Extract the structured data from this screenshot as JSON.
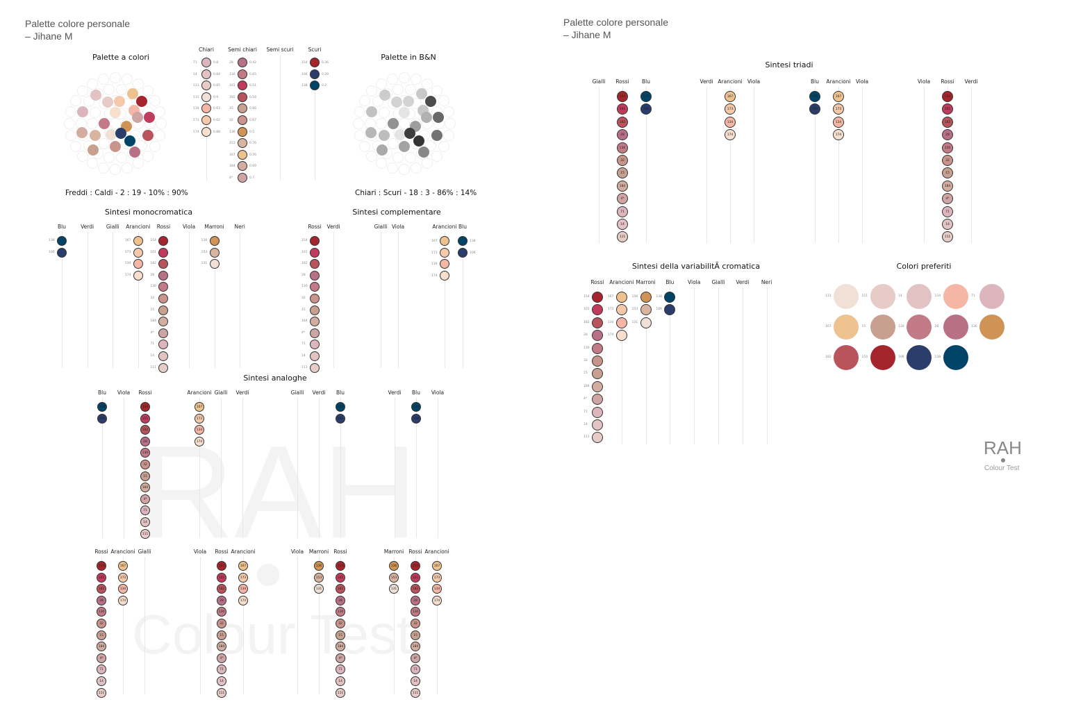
{
  "header_left": {
    "title": "Palette colore personale",
    "name": "– Jihane M"
  },
  "header_right": {
    "title": "Palette colore personale",
    "name": "– Jihane M"
  },
  "sections": {
    "palette_colori": "Palette a colori",
    "palette_bn": "Palette in B&N",
    "mono": "Sintesi monocromatica",
    "compl": "Sintesi complementare",
    "analog": "Sintesi analoghe",
    "triadi": "Sintesi triadi",
    "variab": "Sintesi della variabilitÃ  cromatica",
    "preferiti": "Colori preferiti"
  },
  "stats": {
    "caldi": "Freddi : Caldi - 2 : 19 - 10% : 90%",
    "scuri": "Chiari : Scuri - 18 : 3 - 86% : 14%"
  },
  "brand": {
    "logo": "RAH",
    "tagline": "Colour Test",
    "watermark_logo": "RAH",
    "watermark_tagline": "Colour Test"
  },
  "colors": {
    "154": "#a4262c",
    "101": "#c13c5c",
    "182": "#b9535c",
    "28": "#b87084",
    "130": "#c27a86",
    "32": "#c9948c",
    "15": "#c8a090",
    "184": "#d2ad9f",
    "4*": "#cea4a4",
    "71": "#dcb6bc",
    "14": "#e2c2c2",
    "111": "#e6cbc6",
    "167": "#eec28e",
    "173": "#f4c9ab",
    "134": "#f6b6a6",
    "174": "#f8decc",
    "136": "#cf9355",
    "153": "#d9b5a0",
    "131": "#f0e0d6",
    "106": "#2b3d6b",
    "138": "#004468"
  },
  "columns": {
    "Chiari": [
      [
        "71",
        "0.8"
      ],
      [
        "14",
        "0.84"
      ],
      [
        "111",
        "0.85"
      ],
      [
        "131",
        "0.9"
      ],
      [
        "134",
        "0.63"
      ],
      [
        "173",
        "0.62"
      ],
      [
        "174",
        "0.88"
      ]
    ],
    "Semi chiari": [
      [
        "28",
        "0.42"
      ],
      [
        "130",
        "0.65"
      ],
      [
        "101",
        "0.51"
      ],
      [
        "182",
        "0.54"
      ],
      [
        "15",
        "0.66"
      ],
      [
        "32",
        "0.67"
      ],
      [
        "136",
        "0.5"
      ],
      [
        "153",
        "0.76"
      ],
      [
        "167",
        "0.76"
      ],
      [
        "184",
        "0.69"
      ],
      [
        "4*",
        "0.7"
      ]
    ],
    "Semi scuri": [],
    "Scuri": [
      [
        "154",
        "0.36"
      ],
      [
        "106",
        "0.29"
      ],
      [
        "138",
        "0.2"
      ]
    ]
  },
  "mono": {
    "headers": [
      "Blu",
      "Verdi",
      "Gialli",
      "Arancioni",
      "Rossi",
      "Viola",
      "Marroni",
      "Neri"
    ],
    "values": {
      "Blu": [
        "138",
        "106"
      ],
      "Arancioni": [
        "167",
        "173",
        "134",
        "174"
      ],
      "Rossi": [
        "154",
        "101",
        "182",
        "28",
        "130",
        "32",
        "15",
        "184",
        "4*",
        "71",
        "14",
        "111"
      ],
      "Marroni": [
        "136",
        "153",
        "131"
      ]
    }
  },
  "compl": {
    "headers": [
      "Rossi",
      "Verdi",
      "Gialli",
      "Viola",
      "Arancioni",
      "Blu"
    ],
    "values": {
      "Rossi": [
        "154",
        "101",
        "182",
        "28",
        "130",
        "32",
        "15",
        "184",
        "4*",
        "71",
        "14",
        "111"
      ],
      "Arancioni": [
        "167",
        "173",
        "134",
        "174"
      ],
      "Blu": [
        "138",
        "106"
      ]
    }
  },
  "analog": [
    {
      "headers": [
        "Blu",
        "Viola",
        "Rossi"
      ],
      "values": {
        "Blu": [
          "138",
          "106"
        ],
        "Rossi": [
          "154",
          "101",
          "182",
          "28",
          "130",
          "32",
          "15",
          "184",
          "4*",
          "71",
          "14",
          "111"
        ]
      }
    },
    {
      "headers": [
        "Arancioni",
        "Gialli",
        "Verdi"
      ],
      "values": {
        "Arancioni": [
          "167",
          "173",
          "134",
          "174"
        ]
      }
    },
    {
      "headers": [
        "Gialli",
        "Verdi",
        "Blu"
      ],
      "values": {
        "Blu": [
          "138",
          "106"
        ]
      }
    },
    {
      "headers": [
        "Verdi",
        "Blu",
        "Viola"
      ],
      "values": {
        "Blu": [
          "138",
          "106"
        ]
      }
    },
    {
      "headers": [
        "Rossi",
        "Arancioni",
        "Gialli"
      ],
      "values": {
        "Rossi": [
          "154",
          "101",
          "182",
          "28",
          "130",
          "32",
          "15",
          "184",
          "4*",
          "71",
          "14",
          "111"
        ],
        "Arancioni": [
          "167",
          "173",
          "134",
          "174"
        ]
      }
    },
    {
      "headers": [
        "Viola",
        "Rossi",
        "Arancioni"
      ],
      "values": {
        "Rossi": [
          "154",
          "101",
          "182",
          "28",
          "130",
          "32",
          "15",
          "184",
          "4*",
          "71",
          "14",
          "111"
        ],
        "Arancioni": [
          "167",
          "173",
          "134",
          "174"
        ]
      }
    },
    {
      "headers": [
        "Viola",
        "Marroni",
        "Rossi"
      ],
      "values": {
        "Marroni": [
          "136",
          "153",
          "131"
        ],
        "Rossi": [
          "154",
          "101",
          "182",
          "28",
          "130",
          "32",
          "15",
          "184",
          "4*",
          "71",
          "14",
          "111"
        ]
      }
    },
    {
      "headers": [
        "Marroni",
        "Rossi",
        "Arancioni"
      ],
      "values": {
        "Marroni": [
          "136",
          "153",
          "131"
        ],
        "Rossi": [
          "154",
          "101",
          "182",
          "28",
          "130",
          "32",
          "15",
          "184",
          "4*",
          "71",
          "14",
          "111"
        ],
        "Arancioni": [
          "167",
          "173",
          "134",
          "174"
        ]
      }
    }
  ],
  "triadi": [
    {
      "headers": [
        "Gialli",
        "Rossi",
        "Blu"
      ],
      "values": {
        "Rossi": [
          "154",
          "101",
          "182",
          "28",
          "130",
          "32",
          "15",
          "184",
          "4*",
          "71",
          "14",
          "111"
        ],
        "Blu": [
          "138",
          "106"
        ]
      }
    },
    {
      "headers": [
        "Verdi",
        "Arancioni",
        "Viola"
      ],
      "values": {
        "Arancioni": [
          "167",
          "173",
          "134",
          "174"
        ]
      }
    },
    {
      "headers": [
        "Blu",
        "Arancioni",
        "Viola"
      ],
      "values": {
        "Blu": [
          "138",
          "106"
        ],
        "Arancioni": [
          "167",
          "173",
          "134",
          "174"
        ]
      }
    },
    {
      "headers": [
        "Viola",
        "Rossi",
        "Verdi"
      ],
      "values": {
        "Rossi": [
          "154",
          "101",
          "182",
          "28",
          "130",
          "32",
          "15",
          "184",
          "4*",
          "71",
          "14",
          "111"
        ]
      }
    }
  ],
  "variab": {
    "headers": [
      "Rossi",
      "Arancioni",
      "Marroni",
      "Blu",
      "Viola",
      "Gialli",
      "Verdi",
      "Neri"
    ],
    "values": {
      "Rossi": [
        "154",
        "101",
        "182",
        "28",
        "130",
        "32",
        "15",
        "184",
        "4*",
        "71",
        "14",
        "111"
      ],
      "Arancioni": [
        "167",
        "173",
        "134",
        "174"
      ],
      "Marroni": [
        "136",
        "153",
        "131"
      ],
      "Blu": [
        "138",
        "106"
      ]
    }
  },
  "preferiti": [
    [
      "131",
      "111",
      "14",
      "134",
      "71"
    ],
    [
      "167",
      "15",
      "130",
      "28",
      "136"
    ],
    [
      "182",
      "154",
      "106",
      "138"
    ]
  ],
  "wheel": [
    {
      "c": "154",
      "r": 3,
      "a": -40
    },
    {
      "c": "101",
      "r": 3,
      "a": -10
    },
    {
      "c": "182",
      "r": 3,
      "a": 20
    },
    {
      "c": "28",
      "r": 3,
      "a": 55
    },
    {
      "c": "32",
      "r": 2,
      "a": 90
    },
    {
      "c": "15",
      "r": 3,
      "a": 130
    },
    {
      "c": "184",
      "r": 3,
      "a": 165
    },
    {
      "c": "71",
      "r": 3,
      "a": 200
    },
    {
      "c": "14",
      "r": 3,
      "a": 235
    },
    {
      "c": "111",
      "r": 2,
      "a": 250
    },
    {
      "c": "167",
      "r": 3,
      "a": 300
    },
    {
      "c": "173",
      "r": 2,
      "a": 280
    },
    {
      "c": "134",
      "r": 2,
      "a": 325
    },
    {
      "c": "174",
      "r": 1,
      "a": 270
    },
    {
      "c": "136",
      "r": 1,
      "a": 15
    },
    {
      "c": "153",
      "r": 2,
      "a": 150
    },
    {
      "c": "130",
      "r": 1,
      "a": 180
    },
    {
      "c": "131",
      "r": 1,
      "a": 110
    },
    {
      "c": "4*",
      "r": 2,
      "a": 345
    },
    {
      "c": "106",
      "r": 1,
      "a": 60
    },
    {
      "c": "138",
      "r": 2,
      "a": 50
    }
  ]
}
